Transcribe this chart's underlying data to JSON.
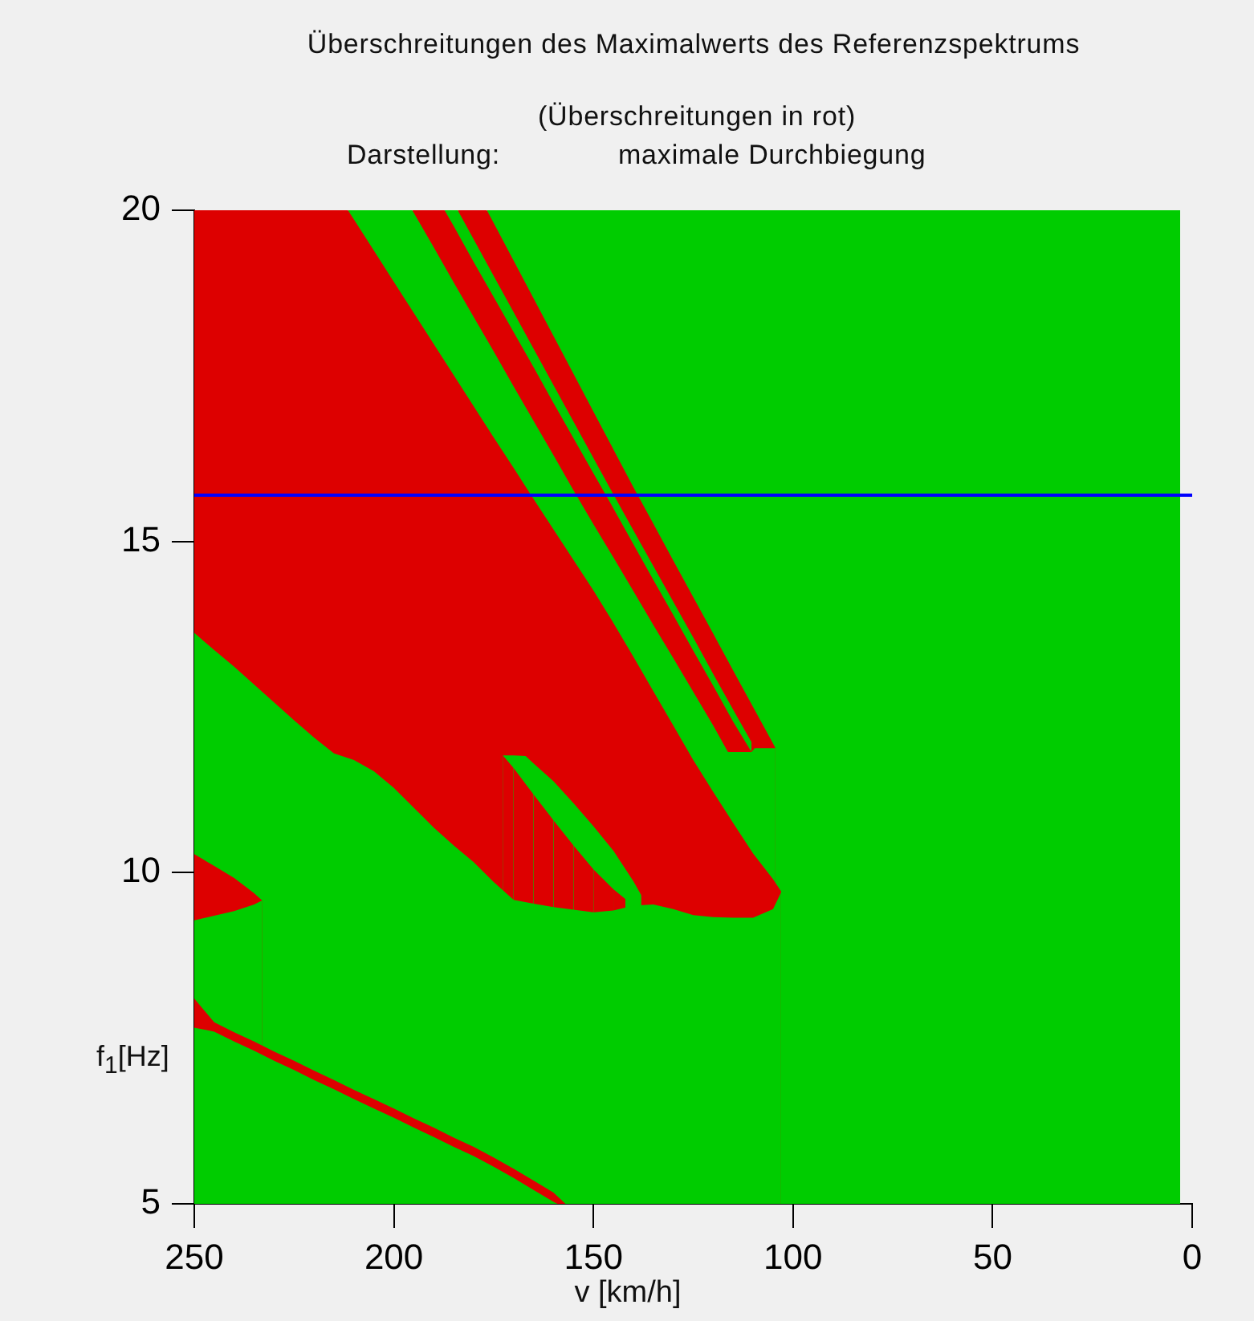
{
  "chart_data": {
    "type": "area",
    "title": "Überschreitungen des Maximalwerts des Referenzspektrums",
    "subtitle": "(Überschreitungen in rot)",
    "annotations": [
      "Darstellung:",
      "maximale Durchbiegung"
    ],
    "xlabel": "v [km/h]",
    "ylabel": "f$_{1}$[Hz]",
    "xlim": [
      250,
      0
    ],
    "xticks": [
      250,
      200,
      150,
      100,
      50,
      0
    ],
    "ylim": [
      5,
      20
    ],
    "yticks": [
      5,
      10,
      15,
      20
    ],
    "series": [
      {
        "color": "#00cc00",
        "x": [
          250,
          245,
          240,
          235,
          230,
          225,
          220,
          215,
          210,
          205,
          200,
          195,
          190,
          185,
          180,
          175,
          170,
          165,
          160,
          159
        ],
        "values": [
          7.66,
          7.6,
          7.45,
          7.31,
          7.16,
          7.02,
          6.87,
          6.73,
          6.58,
          6.44,
          6.3,
          6.15,
          6.01,
          5.86,
          5.72,
          5.56,
          5.39,
          5.21,
          5.03,
          5
        ]
      },
      {
        "color": "#dd0000",
        "x": [
          250,
          245,
          240,
          235,
          230,
          225,
          220,
          215,
          210,
          205,
          200,
          195,
          190,
          185,
          180,
          175,
          170,
          165,
          160,
          157
        ],
        "values": [
          8.1,
          7.74,
          7.59,
          7.45,
          7.3,
          7.16,
          7.01,
          6.87,
          6.72,
          6.58,
          6.44,
          6.29,
          6.15,
          6.0,
          5.86,
          5.7,
          5.53,
          5.35,
          5.17,
          5
        ]
      },
      {
        "color": "#00cc00",
        "x": [
          250,
          245,
          240,
          235,
          233
        ],
        "values": [
          9.28,
          9.35,
          9.42,
          9.52,
          9.58
        ]
      },
      {
        "color": "#dd0000",
        "x": [
          250,
          245,
          240,
          235,
          233
        ],
        "values": [
          10.28,
          10.1,
          9.92,
          9.69,
          9.58
        ]
      },
      {
        "color": "#00cc00",
        "x": [
          250,
          245,
          240,
          235,
          230,
          225,
          220,
          215,
          210,
          205,
          200,
          195,
          190,
          185,
          180,
          175,
          170,
          165,
          160,
          155,
          150,
          145,
          140,
          135,
          130,
          125,
          120,
          115,
          110,
          105,
          103
        ],
        "values": [
          13.62,
          13.36,
          13.11,
          12.84,
          12.57,
          12.3,
          12.04,
          11.8,
          11.7,
          11.53,
          11.28,
          10.98,
          10.68,
          10.41,
          10.16,
          9.86,
          9.59,
          9.53,
          9.48,
          9.44,
          9.4,
          9.43,
          9.5,
          9.52,
          9.45,
          9.36,
          9.33,
          9.32,
          9.32,
          9.45,
          9.7
        ]
      },
      {
        "color": "#dd0000",
        "x": [
          172.7,
          170
        ],
        "values": [
          11.77,
          11.58
        ]
      },
      {
        "color": "#dd0000",
        "x": [
          170,
          165
        ],
        "values": [
          11.58,
          11.18
        ]
      },
      {
        "color": "#dd0000",
        "x": [
          165,
          160
        ],
        "values": [
          11.18,
          10.79
        ]
      },
      {
        "color": "#dd0000",
        "x": [
          160,
          155
        ],
        "values": [
          10.79,
          10.41
        ]
      },
      {
        "color": "#dd0000",
        "x": [
          155,
          150
        ],
        "values": [
          10.41,
          10.05
        ]
      },
      {
        "color": "#dd0000",
        "x": [
          150,
          145
        ],
        "values": [
          10.05,
          9.75
        ]
      },
      {
        "color": "#dd0000",
        "x": [
          145,
          142
        ],
        "values": [
          9.75,
          9.6
        ]
      },
      {
        "color": "#00cc00",
        "x": [
          172.7,
          170,
          167,
          165,
          160,
          155,
          150,
          145,
          140,
          138
        ],
        "values": [
          11.77,
          11.77,
          11.76,
          11.65,
          11.38,
          11.05,
          10.7,
          10.33,
          9.87,
          9.66
        ]
      },
      {
        "color": "#dd0000",
        "x": [
          250,
          211.5,
          210,
          205,
          200,
          195,
          190,
          185,
          180,
          175,
          170,
          165,
          160,
          155,
          150,
          145,
          140,
          135,
          130,
          125,
          120,
          115,
          110,
          105,
          103
        ],
        "values": [
          20,
          20,
          19.86,
          19.39,
          18.92,
          18.45,
          17.98,
          17.51,
          17.04,
          16.57,
          16.11,
          15.64,
          15.18,
          14.72,
          14.26,
          13.77,
          13.26,
          12.74,
          12.22,
          11.7,
          11.22,
          10.75,
          10.29,
          9.9,
          9.72
        ]
      },
      {
        "color": "#00cc00",
        "x": [
          211.5,
          195.4,
          195,
          190,
          185,
          180,
          175,
          170,
          165,
          160,
          155,
          150,
          145,
          140,
          135,
          130,
          125,
          120,
          116.3,
          115,
          110.4,
          109.6,
          105,
          104.4
        ],
        "values": [
          20,
          20,
          19.96,
          19.44,
          18.91,
          18.39,
          17.87,
          17.34,
          16.82,
          16.3,
          15.77,
          15.26,
          14.76,
          14.25,
          13.74,
          13.24,
          12.73,
          12.22,
          11.82,
          11.82,
          11.82,
          11.88,
          11.88,
          11.88
        ]
      },
      {
        "color": "#dd0000",
        "x": [
          195.4,
          187.3,
          185,
          180,
          175,
          170,
          165,
          160,
          155,
          150,
          145,
          140,
          135,
          130,
          125,
          120,
          115,
          110.4
        ],
        "values": [
          20,
          20,
          19.76,
          19.22,
          18.69,
          18.16,
          17.63,
          17.09,
          16.56,
          16.03,
          15.5,
          14.96,
          14.42,
          13.89,
          13.35,
          12.82,
          12.28,
          11.82
        ]
      },
      {
        "color": "#00cc00",
        "x": [
          187.3,
          184,
          180,
          175,
          170,
          165,
          160,
          155,
          150,
          145,
          140,
          135,
          130,
          125,
          120,
          115,
          110.4
        ],
        "values": [
          20,
          20,
          19.56,
          19.01,
          18.46,
          17.91,
          17.36,
          16.81,
          16.26,
          15.71,
          15.17,
          14.63,
          14.09,
          13.55,
          13.0,
          12.46,
          11.97
        ]
      },
      {
        "color": "#dd0000",
        "x": [
          184,
          176.7,
          175,
          170,
          165,
          160,
          155,
          150,
          145,
          140,
          135,
          130,
          125,
          120,
          115,
          110,
          105,
          104.4
        ],
        "values": [
          20,
          20,
          19.81,
          19.24,
          18.67,
          18.1,
          17.53,
          16.96,
          16.39,
          15.82,
          15.27,
          14.71,
          14.16,
          13.61,
          13.05,
          12.5,
          11.95,
          11.88
        ]
      },
      {
        "color": "#00cc00",
        "x": [
          176.7,
          3
        ],
        "values": [
          20,
          20
        ]
      }
    ],
    "ref_lines": [
      {
        "axis": "y",
        "value": 15.7,
        "color": "#0000ff"
      }
    ]
  }
}
